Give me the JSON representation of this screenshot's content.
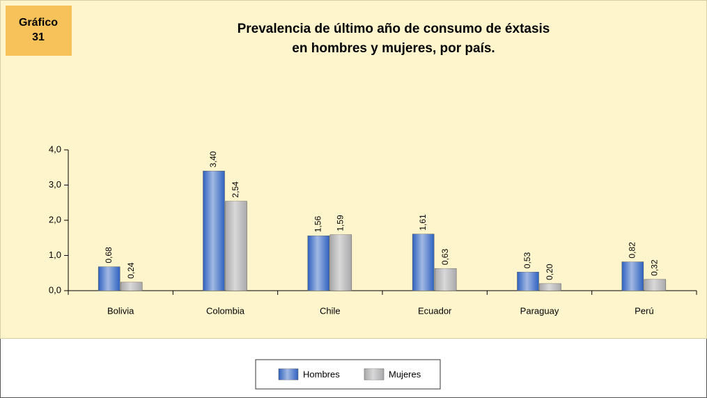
{
  "chart_data": {
    "type": "bar",
    "badge": [
      "Gráfico",
      "31"
    ],
    "title": [
      "Prevalencia de último año de consumo de éxtasis",
      "en hombres y mujeres, por país."
    ],
    "categories": [
      "Bolivia",
      "Colombia",
      "Chile",
      "Ecuador",
      "Paraguay",
      "Perú"
    ],
    "series": [
      {
        "name": "Hombres",
        "color": "#2f62c0",
        "values": [
          0.68,
          3.4,
          1.56,
          1.61,
          0.53,
          0.82
        ],
        "value_labels": [
          "0,68",
          "3,40",
          "1,56",
          "1,61",
          "0,53",
          "0,82"
        ]
      },
      {
        "name": "Mujeres",
        "color": "#a9a9ab",
        "values": [
          0.24,
          2.54,
          1.59,
          0.63,
          0.2,
          0.32
        ],
        "value_labels": [
          "0,24",
          "2,54",
          "1,59",
          "0,63",
          "0,20",
          "0,32"
        ]
      }
    ],
    "ylim": [
      0,
      4
    ],
    "yticks": [
      {
        "value": 0,
        "label": "0,0"
      },
      {
        "value": 1,
        "label": "1,0"
      },
      {
        "value": 2,
        "label": "2,0"
      },
      {
        "value": 3,
        "label": "3,0"
      },
      {
        "value": 4,
        "label": "4,0"
      }
    ],
    "grid": false,
    "legend": "bottom"
  }
}
